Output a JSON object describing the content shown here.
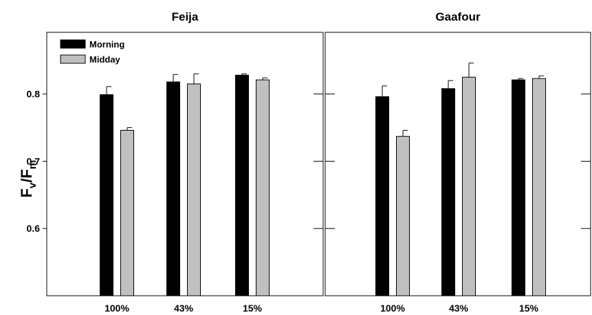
{
  "chart_data": {
    "type": "bar",
    "ylabel": {
      "main": "F",
      "sub1": "v",
      "slash": "/F",
      "sub2": "m"
    },
    "ylim": [
      0.5,
      0.8917
    ],
    "yticks": [
      0.6,
      0.7,
      0.8
    ],
    "ytick_labels": [
      "0.6",
      "0.7",
      "0.8"
    ],
    "legend": {
      "placement": "top-left",
      "entries": [
        {
          "name": "Morning",
          "color": "#000000"
        },
        {
          "name": "Midday",
          "color": "#c0c0c0"
        }
      ]
    },
    "panels": [
      {
        "title": "Feija",
        "categories": [
          "100%",
          "43%",
          "15%"
        ],
        "series": [
          {
            "name": "Morning",
            "color": "#000000",
            "values": [
              0.799,
              0.818,
              0.828
            ],
            "errors": [
              0.012,
              0.011,
              0.002
            ]
          },
          {
            "name": "Midday",
            "color": "#c0c0c0",
            "values": [
              0.746,
              0.815,
              0.821
            ],
            "errors": [
              0.004,
              0.015,
              0.003
            ]
          }
        ]
      },
      {
        "title": "Gaafour",
        "categories": [
          "100%",
          "43%",
          "15%"
        ],
        "series": [
          {
            "name": "Morning",
            "color": "#000000",
            "values": [
              0.796,
              0.808,
              0.821
            ],
            "errors": [
              0.016,
              0.012,
              0.002
            ]
          },
          {
            "name": "Midday",
            "color": "#c0c0c0",
            "values": [
              0.737,
              0.825,
              0.823
            ],
            "errors": [
              0.009,
              0.021,
              0.004
            ]
          }
        ]
      }
    ]
  }
}
